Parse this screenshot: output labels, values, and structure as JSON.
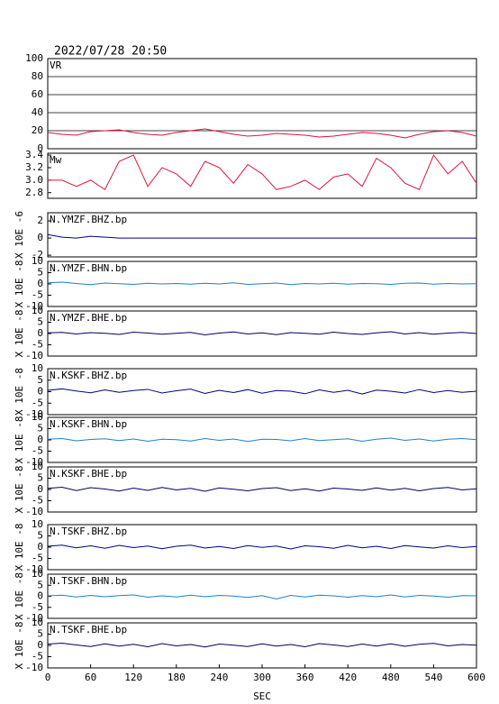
{
  "chart_data": [
    {
      "type": "line",
      "title": "2022/07/28 20:50",
      "label": "VR",
      "xlim": [
        0,
        600
      ],
      "ylim": [
        0,
        100
      ],
      "yticks": [
        0,
        20,
        40,
        60,
        80,
        100
      ],
      "grid": true,
      "x": [
        0,
        20,
        40,
        60,
        80,
        100,
        120,
        140,
        160,
        180,
        200,
        220,
        240,
        260,
        280,
        300,
        320,
        340,
        360,
        380,
        400,
        420,
        440,
        460,
        480,
        500,
        520,
        540,
        560,
        580,
        600
      ],
      "series": [
        {
          "color": "#dc143c",
          "values": [
            18,
            16,
            15,
            19,
            20,
            21,
            18,
            16,
            15,
            18,
            20,
            22,
            19,
            16,
            14,
            15,
            17,
            16,
            15,
            13,
            14,
            16,
            18,
            17,
            15,
            12,
            16,
            19,
            20,
            18,
            14
          ]
        }
      ]
    },
    {
      "type": "line",
      "label": "Mw",
      "xlim": [
        0,
        600
      ],
      "ylim": [
        2.71,
        3.43
      ],
      "yticks": [
        2.8,
        {
          "value": 3.0,
          "label": "3.0"
        },
        3.2,
        3.4
      ],
      "grid": false,
      "x": [
        0,
        20,
        40,
        60,
        80,
        100,
        120,
        140,
        160,
        180,
        200,
        220,
        240,
        260,
        280,
        300,
        320,
        340,
        360,
        380,
        400,
        420,
        440,
        460,
        480,
        500,
        520,
        540,
        560,
        580,
        600
      ],
      "series": [
        {
          "color": "#dc143c",
          "values": [
            3.0,
            3.0,
            2.9,
            3.0,
            2.85,
            3.3,
            3.4,
            2.9,
            3.2,
            3.1,
            2.9,
            3.3,
            3.2,
            2.95,
            3.25,
            3.1,
            2.85,
            2.9,
            3.0,
            2.85,
            3.05,
            3.1,
            2.9,
            3.35,
            3.2,
            2.95,
            2.85,
            3.4,
            3.1,
            3.3,
            2.95
          ]
        }
      ]
    },
    {
      "type": "line",
      "label": "N.YMZF.BHZ.bp",
      "ylabel": "X 10E -6",
      "xlim": [
        0,
        600
      ],
      "ylim": [
        -2.2,
        2.95
      ],
      "yticks": [
        -2,
        0,
        2
      ],
      "x": [
        0,
        20,
        40,
        60,
        80,
        100,
        120,
        140,
        160,
        180,
        200,
        220,
        240,
        260,
        280,
        300,
        320,
        340,
        360,
        380,
        400,
        420,
        440,
        460,
        480,
        500,
        520,
        540,
        560,
        580,
        600
      ],
      "series": [
        {
          "color": "#00008b",
          "values": [
            0.4,
            0.1,
            0,
            0.2,
            0.1,
            0,
            0,
            0,
            0,
            0,
            0,
            0,
            0,
            0,
            0,
            0,
            0,
            0,
            0,
            0,
            0,
            0,
            0,
            0,
            0,
            0,
            0,
            0,
            0,
            0,
            0
          ]
        }
      ]
    },
    {
      "type": "line",
      "label": "N.YMZF.BHN.bp",
      "ylabel": "X 10E -8",
      "xlim": [
        0,
        600
      ],
      "ylim": [
        -10,
        10
      ],
      "yticks": [
        -10,
        -5,
        0,
        5,
        10
      ],
      "x": [
        0,
        20,
        40,
        60,
        80,
        100,
        120,
        140,
        160,
        180,
        200,
        220,
        240,
        260,
        280,
        300,
        320,
        340,
        360,
        380,
        400,
        420,
        440,
        460,
        480,
        500,
        520,
        540,
        560,
        580,
        600
      ],
      "series": [
        {
          "color": "#1e7fd0",
          "values": [
            0.5,
            0.8,
            0.2,
            -0.3,
            0.4,
            0.1,
            -0.2,
            0.3,
            0,
            0.2,
            -0.1,
            0.3,
            0,
            0.5,
            -0.2,
            0.1,
            0.4,
            -0.3,
            0.2,
            0,
            0.3,
            -0.1,
            0.2,
            0.1,
            -0.2,
            0.3,
            0.4,
            -0.1,
            0.2,
            0,
            0.1
          ]
        }
      ]
    },
    {
      "type": "line",
      "label": "N.YMZF.BHE.bp",
      "ylabel": "X 10E -8",
      "xlim": [
        0,
        600
      ],
      "ylim": [
        -10,
        10
      ],
      "yticks": [
        -10,
        -5,
        0,
        5,
        10
      ],
      "x": [
        0,
        20,
        40,
        60,
        80,
        100,
        120,
        140,
        160,
        180,
        200,
        220,
        240,
        260,
        280,
        300,
        320,
        340,
        360,
        380,
        400,
        420,
        440,
        460,
        480,
        500,
        520,
        540,
        560,
        580,
        600
      ],
      "series": [
        {
          "color": "#000060",
          "values": [
            0.3,
            0.5,
            -0.2,
            0.4,
            0.1,
            -0.4,
            0.6,
            0.2,
            -0.3,
            0.1,
            0.5,
            -0.6,
            0.2,
            0.7,
            -0.2,
            0.3,
            -0.5,
            0.4,
            0.1,
            -0.3,
            0.6,
            0,
            -0.4,
            0.3,
            0.8,
            -0.2,
            0.4,
            -0.3,
            0.2,
            0.5,
            0
          ]
        }
      ]
    },
    {
      "type": "line",
      "label": "N.KSKF.BHZ.bp",
      "ylabel": "X 10E -8",
      "xlim": [
        0,
        600
      ],
      "ylim": [
        -10,
        10
      ],
      "yticks": [
        -10,
        -5,
        0,
        5,
        10
      ],
      "x": [
        0,
        20,
        40,
        60,
        80,
        100,
        120,
        140,
        160,
        180,
        200,
        220,
        240,
        260,
        280,
        300,
        320,
        340,
        360,
        380,
        400,
        420,
        440,
        460,
        480,
        500,
        520,
        540,
        560,
        580,
        600
      ],
      "series": [
        {
          "color": "#00008b",
          "values": [
            0.6,
            1.2,
            0.3,
            -0.5,
            0.8,
            -0.3,
            0.5,
            1,
            -0.6,
            0.4,
            1.1,
            -0.8,
            0.6,
            -0.4,
            0.9,
            -0.7,
            0.5,
            0.2,
            -0.9,
            0.8,
            -0.3,
            0.6,
            -1,
            0.7,
            0.2,
            -0.6,
            0.9,
            -0.4,
            0.5,
            -0.3,
            0.2
          ]
        }
      ]
    },
    {
      "type": "line",
      "label": "N.KSKF.BHN.bp",
      "ylabel": "X 10E -8",
      "xlim": [
        0,
        600
      ],
      "ylim": [
        -10,
        10
      ],
      "yticks": [
        -10,
        -5,
        0,
        5,
        10
      ],
      "x": [
        0,
        20,
        40,
        60,
        80,
        100,
        120,
        140,
        160,
        180,
        200,
        220,
        240,
        260,
        280,
        300,
        320,
        340,
        360,
        380,
        400,
        420,
        440,
        460,
        480,
        500,
        520,
        540,
        560,
        580,
        600
      ],
      "series": [
        {
          "color": "#1e7fd0",
          "values": [
            0.3,
            0.6,
            -0.4,
            0.2,
            0.5,
            -0.3,
            0.4,
            -0.6,
            0.3,
            0.1,
            -0.5,
            0.6,
            -0.2,
            0.4,
            -0.7,
            0.3,
            0.2,
            -0.4,
            0.6,
            -0.3,
            0.1,
            0.5,
            -0.6,
            0.3,
            0.8,
            -0.2,
            0.4,
            -0.5,
            0.3,
            0.6,
            0.1
          ]
        }
      ]
    },
    {
      "type": "line",
      "label": "N.KSKF.BHE.bp",
      "ylabel": "X 10E -8",
      "xlim": [
        0,
        600
      ],
      "ylim": [
        -10,
        10
      ],
      "yticks": [
        -10,
        -5,
        0,
        5,
        10
      ],
      "x": [
        0,
        20,
        40,
        60,
        80,
        100,
        120,
        140,
        160,
        180,
        200,
        220,
        240,
        260,
        280,
        300,
        320,
        340,
        360,
        380,
        400,
        420,
        440,
        460,
        480,
        500,
        520,
        540,
        560,
        580,
        600
      ],
      "series": [
        {
          "color": "#000060",
          "values": [
            0.5,
            1,
            -0.5,
            0.8,
            0.2,
            -0.7,
            0.6,
            -0.4,
            0.9,
            -0.2,
            0.5,
            -0.8,
            0.7,
            0.1,
            -0.6,
            0.4,
            0.8,
            -0.5,
            0.3,
            -0.7,
            0.6,
            0.2,
            -0.4,
            0.7,
            -0.3,
            0.5,
            -0.6,
            0.4,
            0.9,
            -0.2,
            0.3
          ]
        }
      ]
    },
    {
      "type": "line",
      "label": "N.TSKF.BHZ.bp",
      "ylabel": "X 10E -8",
      "xlim": [
        0,
        600
      ],
      "ylim": [
        -10,
        10
      ],
      "yticks": [
        -10,
        -5,
        0,
        5,
        10
      ],
      "x": [
        0,
        20,
        40,
        60,
        80,
        100,
        120,
        140,
        160,
        180,
        200,
        220,
        240,
        260,
        280,
        300,
        320,
        340,
        360,
        380,
        400,
        420,
        440,
        460,
        480,
        500,
        520,
        540,
        560,
        580,
        600
      ],
      "series": [
        {
          "color": "#00008b",
          "values": [
            0.4,
            0.9,
            -0.3,
            0.6,
            -0.5,
            0.8,
            -0.2,
            0.5,
            -0.7,
            0.4,
            0.9,
            -0.4,
            0.3,
            -0.6,
            0.7,
            -0.1,
            0.5,
            -0.8,
            0.6,
            0.2,
            -0.5,
            0.8,
            -0.3,
            0.4,
            -0.6,
            0.7,
            0.1,
            -0.4,
            0.6,
            -0.2,
            0.3
          ]
        }
      ]
    },
    {
      "type": "line",
      "label": "N.TSKF.BHN.bp",
      "ylabel": "X 10E -8",
      "xlim": [
        0,
        600
      ],
      "ylim": [
        -10,
        10
      ],
      "yticks": [
        -10,
        -5,
        0,
        5,
        10
      ],
      "x": [
        0,
        20,
        40,
        60,
        80,
        100,
        120,
        140,
        160,
        180,
        200,
        220,
        240,
        260,
        280,
        300,
        320,
        340,
        360,
        380,
        400,
        420,
        440,
        460,
        480,
        500,
        520,
        540,
        560,
        580,
        600
      ],
      "series": [
        {
          "color": "#1e7fd0",
          "values": [
            0.2,
            0.5,
            -0.3,
            0.4,
            -0.2,
            0.3,
            0.6,
            -0.4,
            0.2,
            -0.3,
            0.5,
            -0.2,
            0.4,
            0.1,
            -0.5,
            0.3,
            -1.2,
            0.4,
            -0.3,
            0.5,
            0.2,
            -0.4,
            0.3,
            -0.2,
            0.6,
            -0.3,
            0.4,
            0.1,
            -0.4,
            0.3,
            0.2
          ]
        }
      ]
    },
    {
      "type": "line",
      "label": "N.TSKF.BHE.bp",
      "ylabel": "X 10E -8",
      "xlim": [
        0,
        600
      ],
      "ylim": [
        -10,
        10
      ],
      "yticks": [
        -10,
        -5,
        0,
        5,
        10
      ],
      "xlabel": "SEC",
      "xticks": [
        0,
        60,
        120,
        180,
        240,
        300,
        360,
        420,
        480,
        540,
        600
      ],
      "x": [
        0,
        20,
        40,
        60,
        80,
        100,
        120,
        140,
        160,
        180,
        200,
        220,
        240,
        260,
        280,
        300,
        320,
        340,
        360,
        380,
        400,
        420,
        440,
        460,
        480,
        500,
        520,
        540,
        560,
        580,
        600
      ],
      "series": [
        {
          "color": "#000060",
          "values": [
            0.6,
            1,
            0.2,
            -0.5,
            0.7,
            -0.3,
            0.5,
            -0.6,
            0.8,
            -0.2,
            0.4,
            -0.7,
            0.6,
            0.1,
            -0.5,
            0.7,
            -0.3,
            0.4,
            -0.6,
            0.8,
            0.2,
            -0.5,
            0.6,
            -0.3,
            0.7,
            -0.4,
            0.5,
            0.9,
            -0.2,
            0.4,
            0.1
          ]
        }
      ]
    }
  ]
}
